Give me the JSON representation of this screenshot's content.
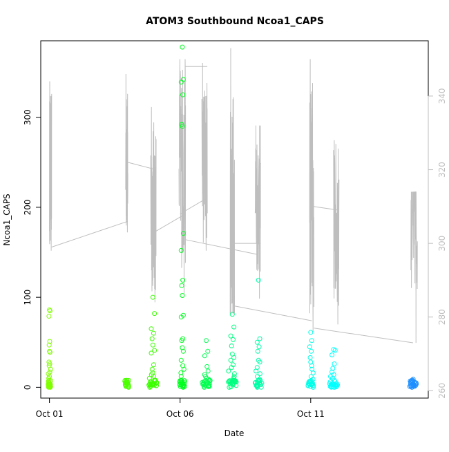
{
  "chart_data": {
    "type": "scatter",
    "title": "ATOM3 Southbound Ncoa1_CAPS",
    "xlabel": "Date",
    "ylabel": "Ncoa1_CAPS",
    "x_axis": {
      "type": "date",
      "ticks": [
        {
          "label": "Oct 01",
          "value": "2016-10-01"
        },
        {
          "label": "Oct 06",
          "value": "2016-10-06"
        },
        {
          "label": "Oct 11",
          "value": "2016-10-11"
        }
      ],
      "xlim": [
        "2016-09-30T16:00",
        "2016-10-15T12:00"
      ]
    },
    "y_left": {
      "ylim": [
        -12,
        385
      ],
      "ticks": [
        0,
        100,
        200,
        300
      ]
    },
    "y_right": {
      "ylim": [
        258,
        355
      ],
      "ticks": [
        260,
        280,
        300,
        320,
        340
      ],
      "color": "#bebebe"
    },
    "grid": false,
    "legend": "none",
    "series": [
      {
        "kind": "points",
        "marker": "open-circle",
        "color_ramp": [
          "#7fff00",
          "#00ff00",
          "#00ffd0",
          "#00ffff",
          "#1e90ff"
        ],
        "clusters": [
          {
            "x": "2016-10-01T00:00",
            "width_days": 0.1,
            "color": "#80ff00",
            "values": [
              86,
              85,
              79,
              51,
              47,
              40,
              39,
              28,
              26,
              24,
              20,
              17,
              15,
              12,
              10,
              8,
              6,
              4,
              3,
              2,
              1,
              0
            ]
          },
          {
            "x": "2016-10-03T23:00",
            "width_days": 0.15,
            "color": "#4cff00",
            "values": [
              4,
              3,
              2,
              1,
              1,
              0
            ]
          },
          {
            "x": "2016-10-04T23:00",
            "width_days": 0.3,
            "color": "#3cff00",
            "values": [
              100,
              82,
              65,
              60,
              54,
              47,
              41,
              38,
              25,
              20,
              16,
              14,
              12,
              10,
              8,
              6,
              5,
              4,
              3,
              2,
              1,
              0
            ]
          },
          {
            "x": "2016-10-06T02:00",
            "width_days": 0.2,
            "color": "#00ff20",
            "values": [
              378,
              342,
              339,
              325,
              292,
              290,
              171,
              152,
              119,
              113,
              102,
              80,
              78,
              54,
              52,
              44,
              40,
              30,
              24,
              20,
              16,
              12,
              8,
              5,
              3,
              2,
              1,
              0
            ]
          },
          {
            "x": "2016-10-07T00:00",
            "width_days": 0.3,
            "color": "#00ff50",
            "values": [
              52,
              40,
              35,
              23,
              18,
              14,
              12,
              10,
              9,
              8,
              7,
              6,
              5,
              4,
              3,
              2,
              1,
              0
            ]
          },
          {
            "x": "2016-10-08T00:00",
            "width_days": 0.3,
            "color": "#00ff80",
            "values": [
              81,
              67,
              57,
              53,
              46,
              37,
              33,
              30,
              25,
              22,
              18,
              15,
              12,
              10,
              8,
              6,
              4,
              3,
              2,
              1,
              0
            ]
          },
          {
            "x": "2016-10-09T00:00",
            "width_days": 0.25,
            "color": "#00ffa8",
            "values": [
              119,
              54,
              50,
              45,
              40,
              30,
              28,
              22,
              18,
              15,
              12,
              9,
              7,
              5,
              3,
              2,
              1,
              0
            ]
          },
          {
            "x": "2016-10-11T00:00",
            "width_days": 0.2,
            "color": "#00ffe8",
            "values": [
              61,
              52,
              45,
              40,
              33,
              28,
              24,
              20,
              16,
              12,
              9,
              6,
              4,
              3,
              2,
              1,
              0
            ]
          },
          {
            "x": "2016-10-11T21:00",
            "width_days": 0.3,
            "color": "#00ffff",
            "values": [
              42,
              41,
              36,
              26,
              21,
              17,
              14,
              12,
              10,
              8,
              6,
              4,
              3,
              2,
              1,
              0
            ]
          },
          {
            "x": "2016-10-14T22:00",
            "width_days": 0.25,
            "color": "#1e90ff",
            "values": [
              9,
              8,
              7,
              6,
              5,
              4,
              3,
              2,
              1,
              0
            ]
          }
        ]
      },
      {
        "kind": "line",
        "axis": "right",
        "color": "#bebebe",
        "segments": [
          {
            "x_start": "2016-10-01T00:00",
            "x_end": "2016-10-01T02:00",
            "center": 320,
            "low": 298,
            "high": 344
          },
          {
            "x_start": "2016-10-03T22:00",
            "x_end": "2016-10-04T00:00",
            "center": 322,
            "low": 303,
            "high": 346
          },
          {
            "x_start": "2016-10-04T21:00",
            "x_end": "2016-10-05T02:00",
            "center": 310,
            "low": 284,
            "high": 337
          },
          {
            "x_start": "2016-10-05T23:00",
            "x_end": "2016-10-06T05:00",
            "center": 322,
            "low": 286,
            "high": 350
          },
          {
            "x_start": "2016-10-06T20:00",
            "x_end": "2016-10-07T01:00",
            "center": 322,
            "low": 298,
            "high": 349
          },
          {
            "x_start": "2016-10-07T22:00",
            "x_end": "2016-10-08T02:00",
            "center": 310,
            "low": 281,
            "high": 353
          },
          {
            "x_start": "2016-10-08T21:00",
            "x_end": "2016-10-09T02:00",
            "center": 312,
            "low": 285,
            "high": 332
          },
          {
            "x_start": "2016-10-10T23:00",
            "x_end": "2016-10-11T03:00",
            "center": 312,
            "low": 276,
            "high": 350
          },
          {
            "x_start": "2016-10-11T21:00",
            "x_end": "2016-10-12T02:00",
            "center": 305,
            "low": 278,
            "high": 328
          },
          {
            "x_start": "2016-10-14T20:00",
            "x_end": "2016-10-15T02:00",
            "center": 305,
            "low": 273,
            "high": 314
          }
        ],
        "connectors": [
          [
            "2016-10-01T02:00",
            299,
            "2016-10-04T00:00",
            306
          ],
          [
            "2016-10-04T00:00",
            322,
            "2016-10-05T02:00",
            320
          ],
          [
            "2016-10-05T00:00",
            303,
            "2016-10-06T05:00",
            308
          ],
          [
            "2016-10-06T05:00",
            348,
            "2016-10-07T01:00",
            348
          ],
          [
            "2016-10-06T00:00",
            308,
            "2016-10-06T23:00",
            312
          ],
          [
            "2016-10-06T05:00",
            301,
            "2016-10-08T23:00",
            297
          ],
          [
            "2016-10-08T01:00",
            300,
            "2016-10-09T02:00",
            300
          ],
          [
            "2016-10-08T02:00",
            283,
            "2016-10-11T01:00",
            279
          ],
          [
            "2016-10-11T03:00",
            310,
            "2016-10-12T02:00",
            309
          ],
          [
            "2016-10-11T03:00",
            277,
            "2016-10-14T22:00",
            273
          ]
        ]
      }
    ]
  }
}
